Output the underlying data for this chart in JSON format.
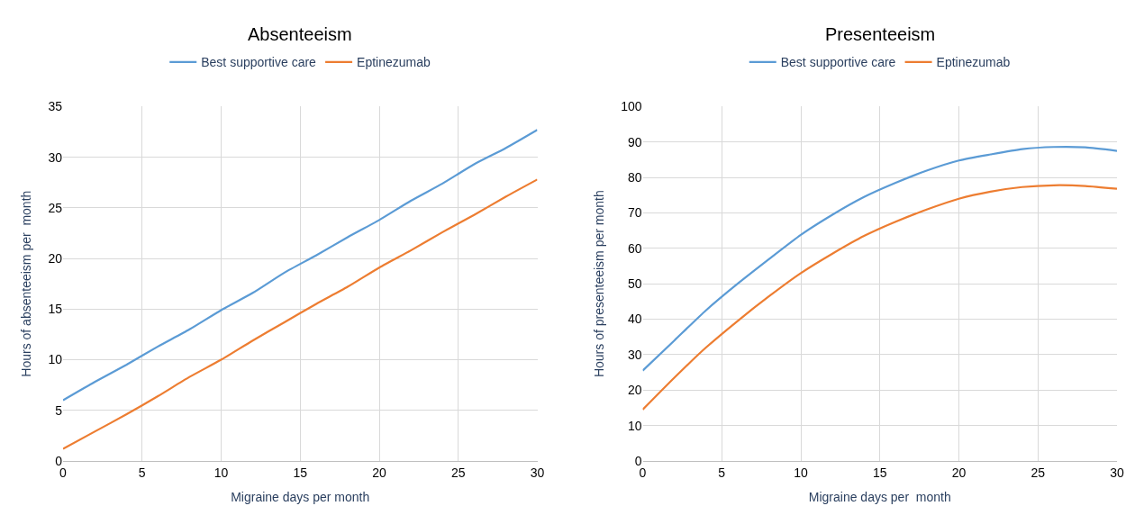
{
  "chart_data": [
    {
      "type": "line",
      "title": "Absenteeism",
      "xlabel": "Migraine days per month",
      "ylabel": "Hours of absenteeism per  month",
      "x": [
        0,
        2,
        4,
        6,
        8,
        10,
        12,
        14,
        16,
        18,
        20,
        22,
        24,
        26,
        28,
        30
      ],
      "xlim": [
        0,
        30
      ],
      "xticks": [
        0,
        5,
        10,
        15,
        20,
        25,
        30
      ],
      "ylim": [
        0,
        35
      ],
      "yticks": [
        0,
        5,
        10,
        15,
        20,
        25,
        30,
        35
      ],
      "grid": true,
      "legend": "top",
      "marker": "none",
      "line_style": "solid",
      "series": [
        {
          "name": "Best supportive care",
          "color": "#5b9bd5",
          "values": [
            6,
            7.8,
            9.5,
            11.3,
            13.0,
            14.9,
            16.6,
            18.6,
            20.3,
            22.1,
            23.8,
            25.7,
            27.4,
            29.3,
            30.9,
            32.7
          ]
        },
        {
          "name": "Eptinezumab",
          "color": "#ed7d31",
          "values": [
            1.2,
            2.9,
            4.6,
            6.4,
            8.3,
            10.0,
            11.9,
            13.7,
            15.5,
            17.2,
            19.1,
            20.8,
            22.6,
            24.3,
            26.1,
            27.8
          ]
        }
      ]
    },
    {
      "type": "line",
      "title": "Presenteeism",
      "xlabel": "Migraine days per  month",
      "ylabel": "Hours of presenteeism per month",
      "x": [
        0,
        2,
        4,
        6,
        8,
        10,
        12,
        14,
        16,
        18,
        20,
        22,
        24,
        26,
        28,
        30
      ],
      "xlim": [
        0,
        30
      ],
      "xticks": [
        0,
        5,
        10,
        15,
        20,
        25,
        30
      ],
      "ylim": [
        0,
        100
      ],
      "yticks": [
        0,
        10,
        20,
        30,
        40,
        50,
        60,
        70,
        80,
        90,
        100
      ],
      "grid": true,
      "legend": "top",
      "marker": "none",
      "line_style": "solid",
      "series": [
        {
          "name": "Best supportive care",
          "color": "#5b9bd5",
          "values": [
            25.5,
            34,
            42.5,
            50,
            57,
            63.8,
            69.5,
            74.5,
            78.5,
            82,
            84.8,
            86.5,
            88,
            88.6,
            88.5,
            87.5
          ]
        },
        {
          "name": "Eptinezumab",
          "color": "#ed7d31",
          "values": [
            14.5,
            23.5,
            32,
            39.5,
            46.5,
            53,
            58.5,
            63.5,
            67.5,
            71,
            74,
            76,
            77.3,
            77.8,
            77.6,
            76.8
          ]
        }
      ]
    }
  ]
}
